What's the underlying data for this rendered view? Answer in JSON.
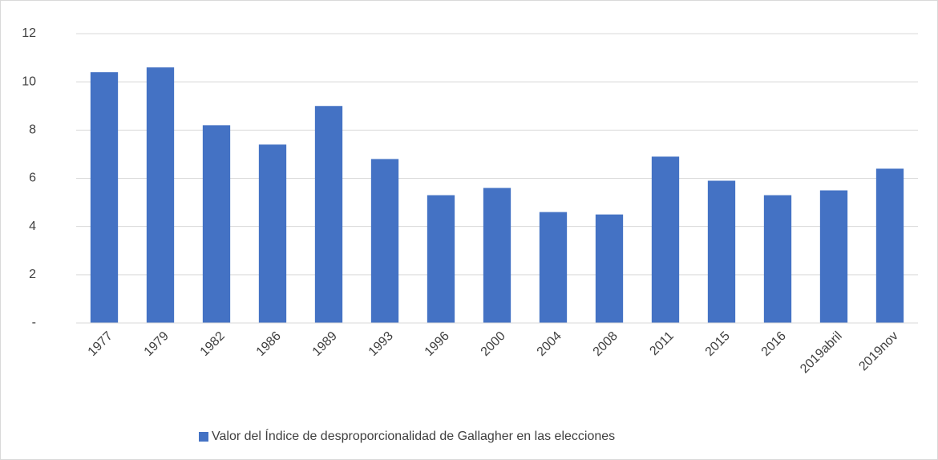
{
  "chart_data": {
    "type": "bar",
    "categories": [
      "1977",
      "1979",
      "1982",
      "1986",
      "1989",
      "1993",
      "1996",
      "2000",
      "2004",
      "2008",
      "2011",
      "2015",
      "2016",
      "2019abril",
      "2019nov"
    ],
    "series": [
      {
        "name": "Valor del Índice de desproporcionalidad de Gallagher en las elecciones",
        "color": "#4472c4",
        "values": [
          10.4,
          10.6,
          8.2,
          7.4,
          9.0,
          6.8,
          5.3,
          5.6,
          4.6,
          4.5,
          6.9,
          5.9,
          5.3,
          5.5,
          6.4
        ]
      }
    ],
    "ylim": [
      0,
      12
    ],
    "yticks": [
      {
        "value": 0,
        "label": "-"
      },
      2,
      4,
      6,
      8,
      10,
      12
    ],
    "grid": true,
    "legend": "bottom"
  }
}
